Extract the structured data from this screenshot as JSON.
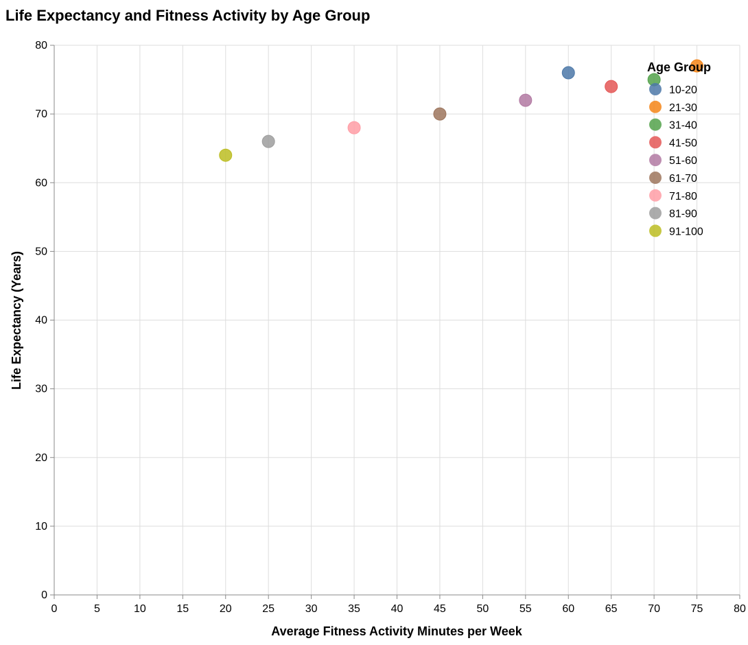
{
  "chart_data": {
    "type": "scatter",
    "title": "Life Expectancy and Fitness Activity by Age Group",
    "xlabel": "Average Fitness Activity Minutes per Week",
    "ylabel": "Life Expectancy (Years)",
    "xlim": [
      0,
      80
    ],
    "ylim": [
      0,
      80
    ],
    "x_ticks": [
      0,
      5,
      10,
      15,
      20,
      25,
      30,
      35,
      40,
      45,
      50,
      55,
      60,
      65,
      70,
      75,
      80
    ],
    "y_ticks": [
      0,
      10,
      20,
      30,
      40,
      50,
      60,
      70,
      80
    ],
    "grid": true,
    "legend": {
      "title": "Age Group",
      "placement": "top-right"
    },
    "points": [
      {
        "group": "10-20",
        "x": 60,
        "y": 76,
        "color": "#4c78a8"
      },
      {
        "group": "21-30",
        "x": 75,
        "y": 77,
        "color": "#f58518"
      },
      {
        "group": "31-40",
        "x": 70,
        "y": 75,
        "color": "#54a24b"
      },
      {
        "group": "41-50",
        "x": 65,
        "y": 74,
        "color": "#e45756"
      },
      {
        "group": "51-60",
        "x": 55,
        "y": 72,
        "color": "#b279a2"
      },
      {
        "group": "61-70",
        "x": 45,
        "y": 70,
        "color": "#9d755d"
      },
      {
        "group": "71-80",
        "x": 35,
        "y": 68,
        "color": "#ff9da6"
      },
      {
        "group": "81-90",
        "x": 25,
        "y": 66,
        "color": "#9d9d9d"
      },
      {
        "group": "91-100",
        "x": 20,
        "y": 64,
        "color": "#bcbd22"
      }
    ]
  }
}
